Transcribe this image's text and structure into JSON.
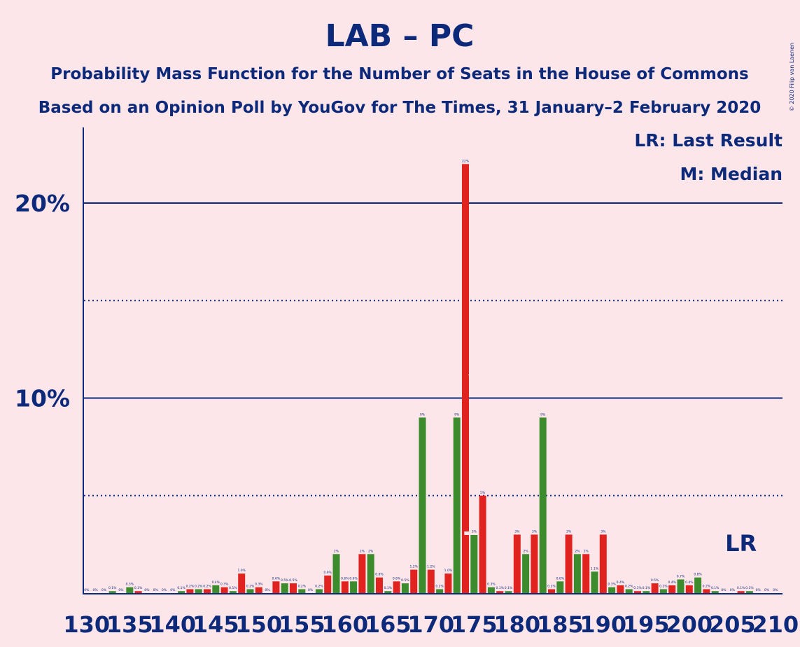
{
  "title": "LAB – PC",
  "subtitle1": "Probability Mass Function for the Number of Seats in the House of Commons",
  "subtitle2": "Based on an Opinion Poll by YouGov for The Times, 31 January–2 February 2020",
  "copyright": "© 2020 Filip van Laenen",
  "legend": {
    "lr": "LR: Last Result",
    "m": "M: Median"
  },
  "lr_marker": "LR",
  "colors": {
    "background": "#fde6ea",
    "axis": "#0d2a7a",
    "green": "#3c8c2e",
    "red": "#e0231f"
  },
  "chart_data": {
    "type": "bar",
    "x_start": 130,
    "y_unit": "%",
    "ylim": [
      0,
      23
    ],
    "yticks": [
      {
        "value": 10,
        "label": "10%"
      },
      {
        "value": 20,
        "label": "20%"
      }
    ],
    "dotted_gridlines": [
      5,
      15
    ],
    "xtick_labels": [
      "130",
      "135",
      "140",
      "145",
      "150",
      "155",
      "160",
      "165",
      "170",
      "175",
      "180",
      "185",
      "190",
      "195",
      "200",
      "205",
      "210"
    ],
    "median_seat": 175,
    "last_result_seat": 206,
    "values": [
      0,
      0,
      0,
      0.1,
      0,
      0.3,
      0.1,
      0,
      0,
      0,
      0,
      0.1,
      0.2,
      0.2,
      0.2,
      0.4,
      0.3,
      0.1,
      1.0,
      0.2,
      0.3,
      0,
      0.6,
      0.5,
      0.5,
      0.2,
      0,
      0.2,
      0.9,
      2,
      0.6,
      0.6,
      2,
      2,
      0.8,
      0.1,
      0.6,
      0.5,
      1.2,
      9,
      1.2,
      0.2,
      1.0,
      9,
      22,
      3,
      5,
      0.3,
      0.1,
      0.1,
      3,
      2,
      3,
      9,
      0.2,
      0.6,
      3,
      2,
      2,
      1.1,
      3,
      0.3,
      0.4,
      0.2,
      0.1,
      0.1,
      0.5,
      0.2,
      0.4,
      0.7,
      0.4,
      0.8,
      0.2,
      0.1,
      0,
      0,
      0.1,
      0.1,
      0,
      0,
      0
    ],
    "labels": [
      "0%",
      "0%",
      "0%",
      "0.1%",
      "0%",
      "0.3%",
      "0.1%",
      "0%",
      "0%",
      "0%",
      "0%",
      "0.1%",
      "0.2%",
      "0.2%",
      "0.2%",
      "0.4%",
      "0.3%",
      "0.1%",
      "1.0%",
      "0.2%",
      "0.3%",
      "0%",
      "0.6%",
      "0.5%",
      "0.5%",
      "0.2%",
      "0%",
      "0.2%",
      "0.9%",
      "2%",
      "0.6%",
      "0.6%",
      "2%",
      "2%",
      "0.8%",
      "0.1%",
      "0.6%",
      "0.5%",
      "1.2%",
      "9%",
      "1.2%",
      "0.2%",
      "1.0%",
      "9%",
      "22%",
      "3%",
      "5%",
      "0.3%",
      "0.1%",
      "0.1%",
      "3%",
      "2%",
      "3%",
      "9%",
      "0.2%",
      "0.6%",
      "3%",
      "2%",
      "2%",
      "1.1%",
      "3%",
      "0.3%",
      "0.4%",
      "0.2%",
      "0.1%",
      "0.1%",
      "0.5%",
      "0.2%",
      "0.4%",
      "0.7%",
      "0.4%",
      "0.8%",
      "0.2%",
      "0.1%",
      "0%",
      "0%",
      "0.1%",
      "0.1%",
      "0%",
      "0%",
      "0%"
    ]
  }
}
